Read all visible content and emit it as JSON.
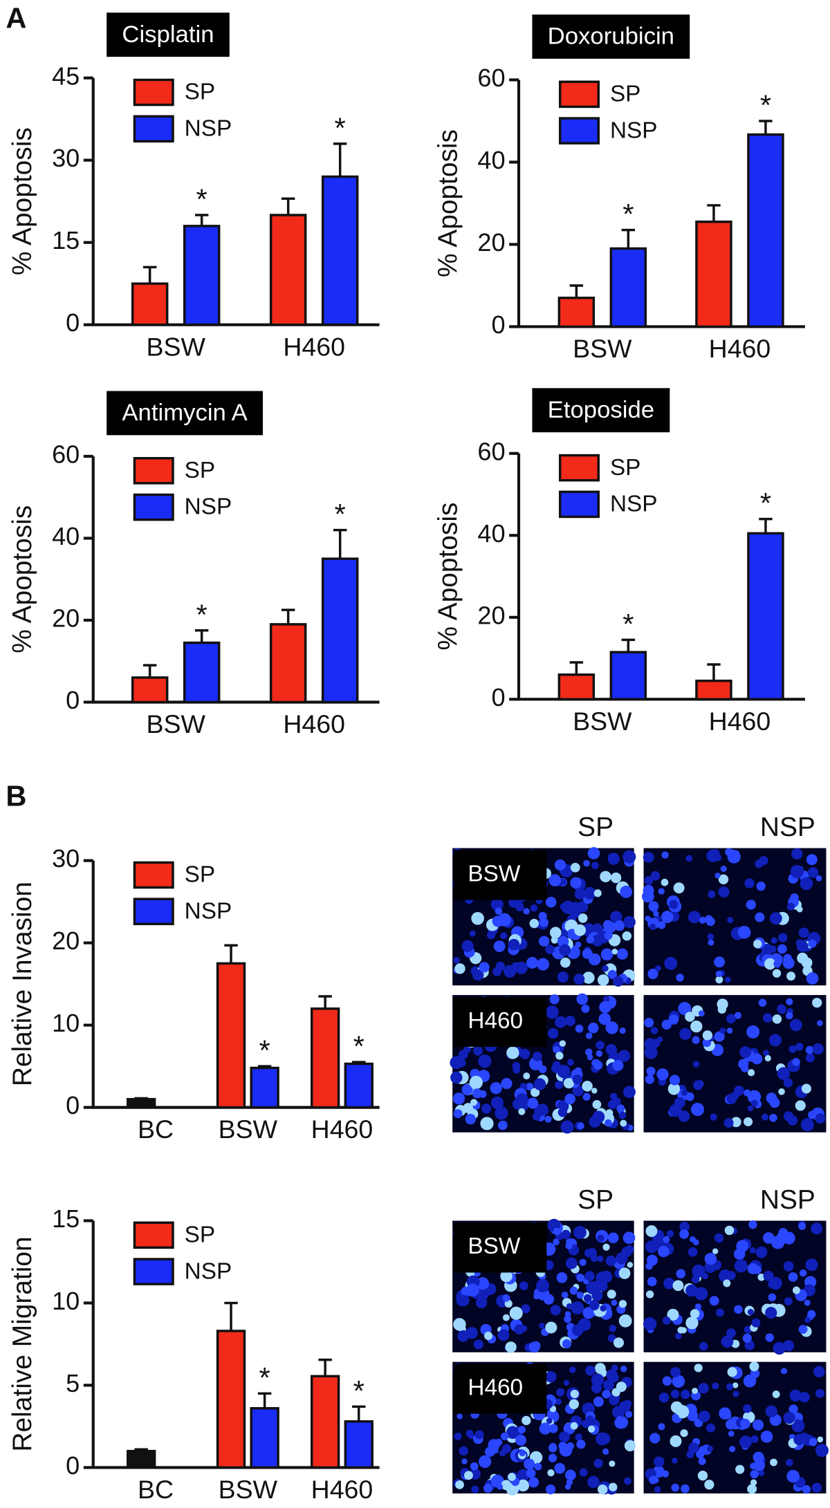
{
  "panel_labels": [
    "A",
    "B"
  ],
  "chart_data": [
    {
      "type": "bar",
      "title": "Cisplatin",
      "y_label": "% Apoptosis",
      "categories": [
        "BSW",
        "H460"
      ],
      "series": [
        {
          "name": "SP",
          "color": "#f22a1a",
          "values": [
            7.5,
            20
          ],
          "errors": [
            3,
            3
          ]
        },
        {
          "name": "NSP",
          "color": "#1a2cf5",
          "values": [
            18,
            27
          ],
          "errors": [
            2,
            6
          ],
          "annotations": [
            "*",
            "*"
          ]
        }
      ],
      "ylim": [
        0,
        45
      ],
      "yticks": [
        0,
        15,
        30,
        45
      ]
    },
    {
      "type": "bar",
      "title": "Doxorubicin",
      "y_label": "% Apoptosis",
      "categories": [
        "BSW",
        "H460"
      ],
      "series": [
        {
          "name": "SP",
          "color": "#f22a1a",
          "values": [
            7,
            25.5
          ],
          "errors": [
            3,
            4
          ]
        },
        {
          "name": "NSP",
          "color": "#1a2cf5",
          "values": [
            19,
            46.7
          ],
          "errors": [
            4.5,
            3.3
          ],
          "annotations": [
            "*",
            "*"
          ]
        }
      ],
      "ylim": [
        0,
        60
      ],
      "yticks": [
        0,
        20,
        40,
        60
      ]
    },
    {
      "type": "bar",
      "title": "Antimycin A",
      "y_label": "% Apoptosis",
      "categories": [
        "BSW",
        "H460"
      ],
      "series": [
        {
          "name": "SP",
          "color": "#f22a1a",
          "values": [
            6,
            19
          ],
          "errors": [
            3,
            3.5
          ]
        },
        {
          "name": "NSP",
          "color": "#1a2cf5",
          "values": [
            14.5,
            35
          ],
          "errors": [
            3,
            7
          ],
          "annotations": [
            "*",
            "*"
          ]
        }
      ],
      "ylim": [
        0,
        60
      ],
      "yticks": [
        0,
        20,
        40,
        60
      ]
    },
    {
      "type": "bar",
      "title": "Etoposide",
      "y_label": "% Apoptosis",
      "categories": [
        "BSW",
        "H460"
      ],
      "series": [
        {
          "name": "SP",
          "color": "#f22a1a",
          "values": [
            6,
            4.5
          ],
          "errors": [
            3,
            4
          ]
        },
        {
          "name": "NSP",
          "color": "#1a2cf5",
          "values": [
            11.5,
            40.5
          ],
          "errors": [
            3,
            3.5
          ],
          "annotations": [
            "*",
            "*"
          ]
        }
      ],
      "ylim": [
        0,
        60
      ],
      "yticks": [
        0,
        20,
        40,
        60
      ]
    },
    {
      "type": "bar",
      "y_label": "Relative Invasion",
      "categories": [
        "BC",
        "BSW",
        "H460"
      ],
      "control": {
        "color": "#111111",
        "values": [
          1,
          null,
          null
        ],
        "errors": [
          0.1,
          null,
          null
        ]
      },
      "series": [
        {
          "name": "SP",
          "color": "#f22a1a",
          "values": [
            null,
            17.5,
            12
          ],
          "errors": [
            null,
            2.2,
            1.5
          ]
        },
        {
          "name": "NSP",
          "color": "#1a2cf5",
          "values": [
            null,
            4.8,
            5.3
          ],
          "errors": [
            null,
            0.2,
            0.2
          ],
          "annotations": [
            null,
            "*",
            "*"
          ]
        }
      ],
      "ylim": [
        0,
        30
      ],
      "yticks": [
        0,
        10,
        20,
        30
      ]
    },
    {
      "type": "bar",
      "y_label": "Relative Migration",
      "categories": [
        "BC",
        "BSW",
        "H460"
      ],
      "control": {
        "color": "#111111",
        "values": [
          1,
          null,
          null
        ],
        "errors": [
          0.1,
          null,
          null
        ]
      },
      "series": [
        {
          "name": "SP",
          "color": "#f22a1a",
          "values": [
            null,
            8.3,
            5.55
          ],
          "errors": [
            null,
            1.7,
            1
          ]
        },
        {
          "name": "NSP",
          "color": "#1a2cf5",
          "values": [
            null,
            3.6,
            2.8
          ],
          "errors": [
            null,
            0.9,
            0.9
          ],
          "annotations": [
            null,
            "*",
            "*"
          ]
        }
      ],
      "ylim": [
        0,
        15
      ],
      "yticks": [
        0,
        5,
        10,
        15
      ]
    }
  ],
  "micrographs": [
    {
      "column_labels": [
        "SP",
        "NSP"
      ],
      "row_labels": [
        "BSW",
        "H460"
      ]
    },
    {
      "column_labels": [
        "SP",
        "NSP"
      ],
      "row_labels": [
        "BSW",
        "H460"
      ]
    }
  ]
}
